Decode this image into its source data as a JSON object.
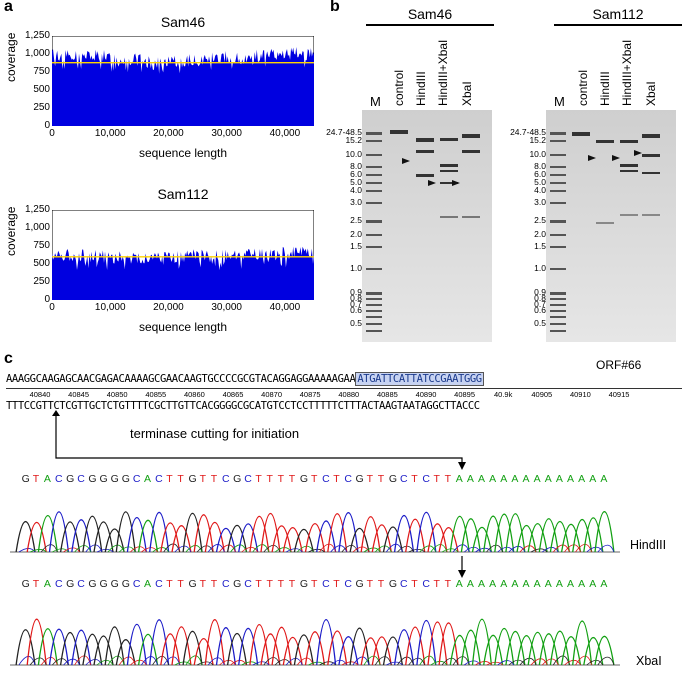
{
  "panel_a": {
    "letter": "a",
    "charts": [
      {
        "title": "Sam46",
        "ylabel": "coverage",
        "xlabel": "sequence length",
        "yticks": [
          "1,250",
          "1,000",
          "750",
          "500",
          "250",
          "0"
        ],
        "xticks": [
          "0",
          "10,000",
          "20,000",
          "30,000",
          "40,000"
        ],
        "mean_line_color": "#ffd400",
        "fill_color": "#0000e0"
      },
      {
        "title": "Sam112",
        "ylabel": "coverage",
        "xlabel": "sequence length",
        "yticks": [
          "1,250",
          "1,000",
          "750",
          "500",
          "250",
          "0"
        ],
        "xticks": [
          "0",
          "10,000",
          "20,000",
          "30,000",
          "40,000"
        ],
        "mean_line_color": "#ffd400",
        "fill_color": "#0000e0"
      }
    ]
  },
  "chart_data": [
    {
      "type": "area",
      "title": "Sam46",
      "xlabel": "sequence length",
      "ylabel": "coverage",
      "xlim": [
        0,
        45000
      ],
      "ylim": [
        0,
        1250
      ],
      "x": [
        0,
        2500,
        5000,
        7500,
        10000,
        12500,
        15000,
        17500,
        20000,
        22500,
        25000,
        27500,
        30000,
        32500,
        35000,
        37500,
        40000,
        42500,
        45000
      ],
      "values": [
        1000,
        980,
        960,
        990,
        950,
        930,
        920,
        860,
        880,
        900,
        920,
        940,
        960,
        950,
        970,
        990,
        1000,
        1010,
        990
      ],
      "mean": 880
    },
    {
      "type": "area",
      "title": "Sam112",
      "xlabel": "sequence length",
      "ylabel": "coverage",
      "xlim": [
        0,
        45000
      ],
      "ylim": [
        0,
        1250
      ],
      "x": [
        0,
        2500,
        5000,
        7500,
        10000,
        12500,
        15000,
        17500,
        20000,
        22500,
        25000,
        27500,
        30000,
        32500,
        35000,
        37500,
        40000,
        42500,
        45000
      ],
      "values": [
        640,
        630,
        620,
        610,
        620,
        600,
        590,
        580,
        600,
        610,
        620,
        600,
        610,
        620,
        630,
        640,
        650,
        660,
        650
      ],
      "mean": 600
    }
  ],
  "panel_b": {
    "letter": "b",
    "gels": [
      {
        "title": "Sam46",
        "marker_label": "M",
        "lanes": [
          "control",
          "HindIII",
          "HindIII+XbaI",
          "XbaI"
        ]
      },
      {
        "title": "Sam112",
        "marker_label": "M",
        "lanes": [
          "control",
          "HindIII",
          "HindIII+XbaI",
          "XbaI"
        ]
      }
    ],
    "ladder": [
      "24.7-48.5",
      "15.2",
      "10.0",
      "8.0",
      "6.0",
      "5.0",
      "4.0",
      "3.0",
      "2.5",
      "2.0",
      "1.5",
      "1.0",
      "0.9",
      "0.8",
      "0.7",
      "0.6",
      "0.5"
    ]
  },
  "panel_c": {
    "letter": "c",
    "orf_label": "ORF#66",
    "top_seq_plain": "AAAGGCAAGAGCAACGAGACAAAAGCGAACAAGTGCCCCGCGTACAGGAGGAAAAAGAA",
    "top_seq_orf": "ATGATTCATTATCCGAATGGG",
    "positions": [
      "40840",
      "40845",
      "40850",
      "40855",
      "40860",
      "40865",
      "40870",
      "40875",
      "40880",
      "40885",
      "40890",
      "40895",
      "40.9k",
      "40905",
      "40910",
      "40915"
    ],
    "bottom_seq": "TTTCCGTTCTCGTTGCTCTGTTTTCGCTTGTTCACGGGGCGCATGTCCTCCTTTTTCTTTACTAAGTAATAGGCTTACCC",
    "annotation": "terminase cutting for initiation",
    "chromatograms": [
      {
        "bases": "GTACGCGGGGCACTTGTTCGCTTTTGTCTCGTTGCTCTTAAAAAAAAAAAAAA",
        "label": "HindIII"
      },
      {
        "bases": "GTACGCGGGGCACTTGTTCGCTTTTGTCTCGTTGCTCTTAAAAAAAAAAAAAA",
        "label": "XbaI"
      }
    ],
    "base_colors": {
      "A": "#12a012",
      "C": "#1c1cc8",
      "G": "#222222",
      "T": "#e01818"
    }
  }
}
